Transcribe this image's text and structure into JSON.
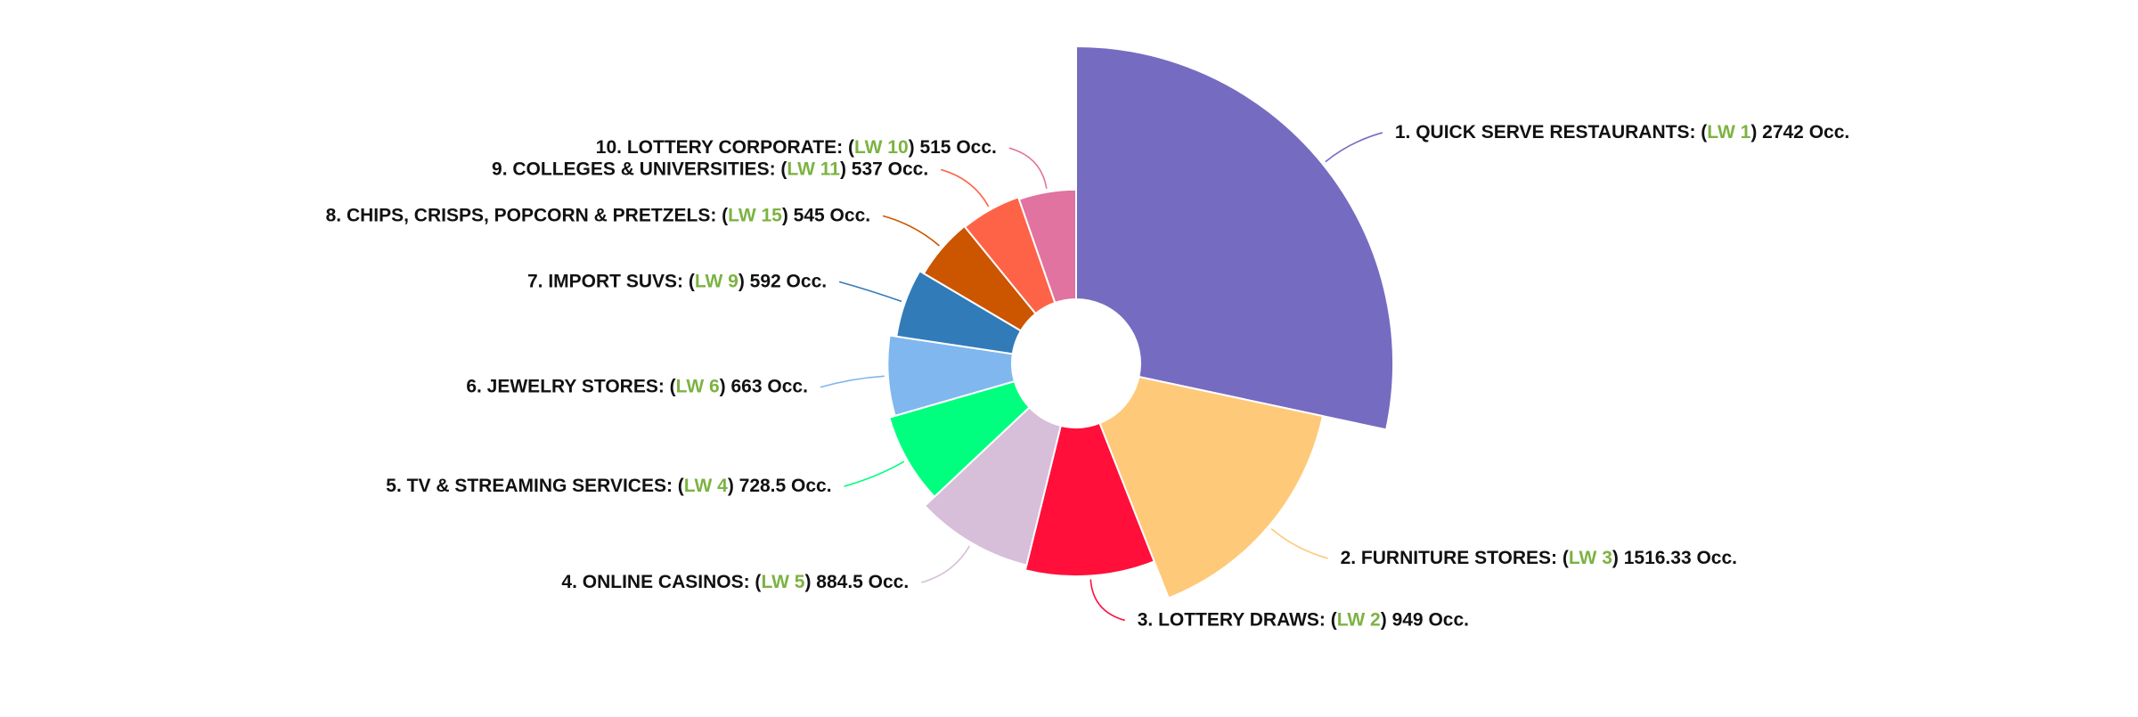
{
  "chart_data": {
    "type": "pie",
    "variant": "polar-area-donut",
    "title": "",
    "sort": "descending",
    "value_suffix": "Occ.",
    "label_prefix_color": "#7cb342",
    "slices": [
      {
        "rank": "1.",
        "name": "QUICK SERVE RESTAURANTS",
        "lw": "LW 1",
        "value": 2742,
        "value_text": "2742",
        "color": "#756bc1"
      },
      {
        "rank": "2.",
        "name": "FURNITURE STORES",
        "lw": "LW 3",
        "value": 1516.33,
        "value_text": "1516.33",
        "color": "#ffc97a"
      },
      {
        "rank": "3.",
        "name": "LOTTERY DRAWS",
        "lw": "LW 2",
        "value": 949,
        "value_text": "949",
        "color": "#ff0f3a"
      },
      {
        "rank": "4.",
        "name": "ONLINE CASINOS",
        "lw": "LW 5",
        "value": 884.5,
        "value_text": "884.5",
        "color": "#d7bed9"
      },
      {
        "rank": "5.",
        "name": "TV & STREAMING SERVICES",
        "lw": "LW 4",
        "value": 728.5,
        "value_text": "728.5",
        "color": "#00ff7f"
      },
      {
        "rank": "6.",
        "name": "JEWELRY STORES",
        "lw": "LW 6",
        "value": 663,
        "value_text": "663",
        "color": "#80b7ee"
      },
      {
        "rank": "7.",
        "name": "IMPORT SUVS",
        "lw": "LW 9",
        "value": 592,
        "value_text": "592",
        "color": "#327bb9"
      },
      {
        "rank": "8.",
        "name": "CHIPS, CRISPS, POPCORN & PRETZELS",
        "lw": "LW 15",
        "value": 545,
        "value_text": "545",
        "color": "#cc5500"
      },
      {
        "rank": "9.",
        "name": "COLLEGES & UNIVERSITIES",
        "lw": "LW 11",
        "value": 537,
        "value_text": "537",
        "color": "#ff6347"
      },
      {
        "rank": "10.",
        "name": "LOTTERY CORPORATE",
        "lw": "LW 10",
        "value": 515,
        "value_text": "515",
        "color": "#e0739f"
      }
    ]
  }
}
